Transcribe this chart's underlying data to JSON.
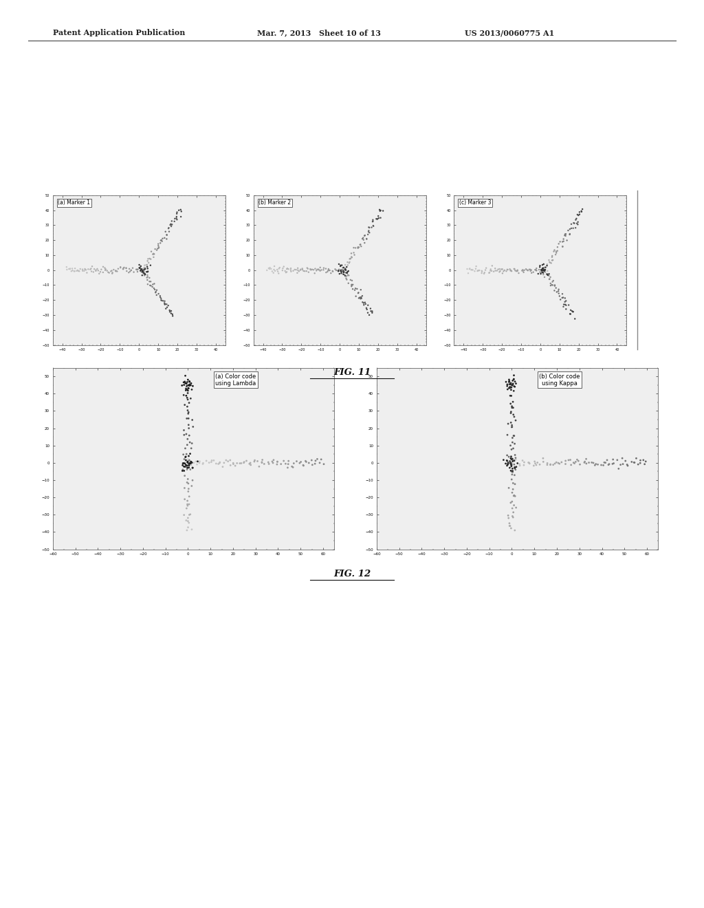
{
  "background_color": "#ffffff",
  "header_left": "Patent Application Publication",
  "header_mid": "Mar. 7, 2013   Sheet 10 of 13",
  "header_right": "US 2013/0060775 A1",
  "fig11_caption": "FIG. 11",
  "fig12_caption": "FIG. 12",
  "plot_labels_row1": [
    "(a) Marker 1",
    "(b) Marker 2",
    "(c) Marker 3"
  ],
  "plot_labels_row2": [
    "(a) Color code\nusing Lambda",
    "(b) Color code\nusing Kappa"
  ],
  "xlim_row1": [
    -45,
    45
  ],
  "ylim_row1": [
    -50,
    50
  ],
  "xlim_row2": [
    -60,
    65
  ],
  "ylim_row2": [
    -50,
    55
  ],
  "page_width": 10.24,
  "page_height": 13.2,
  "seed": 42
}
